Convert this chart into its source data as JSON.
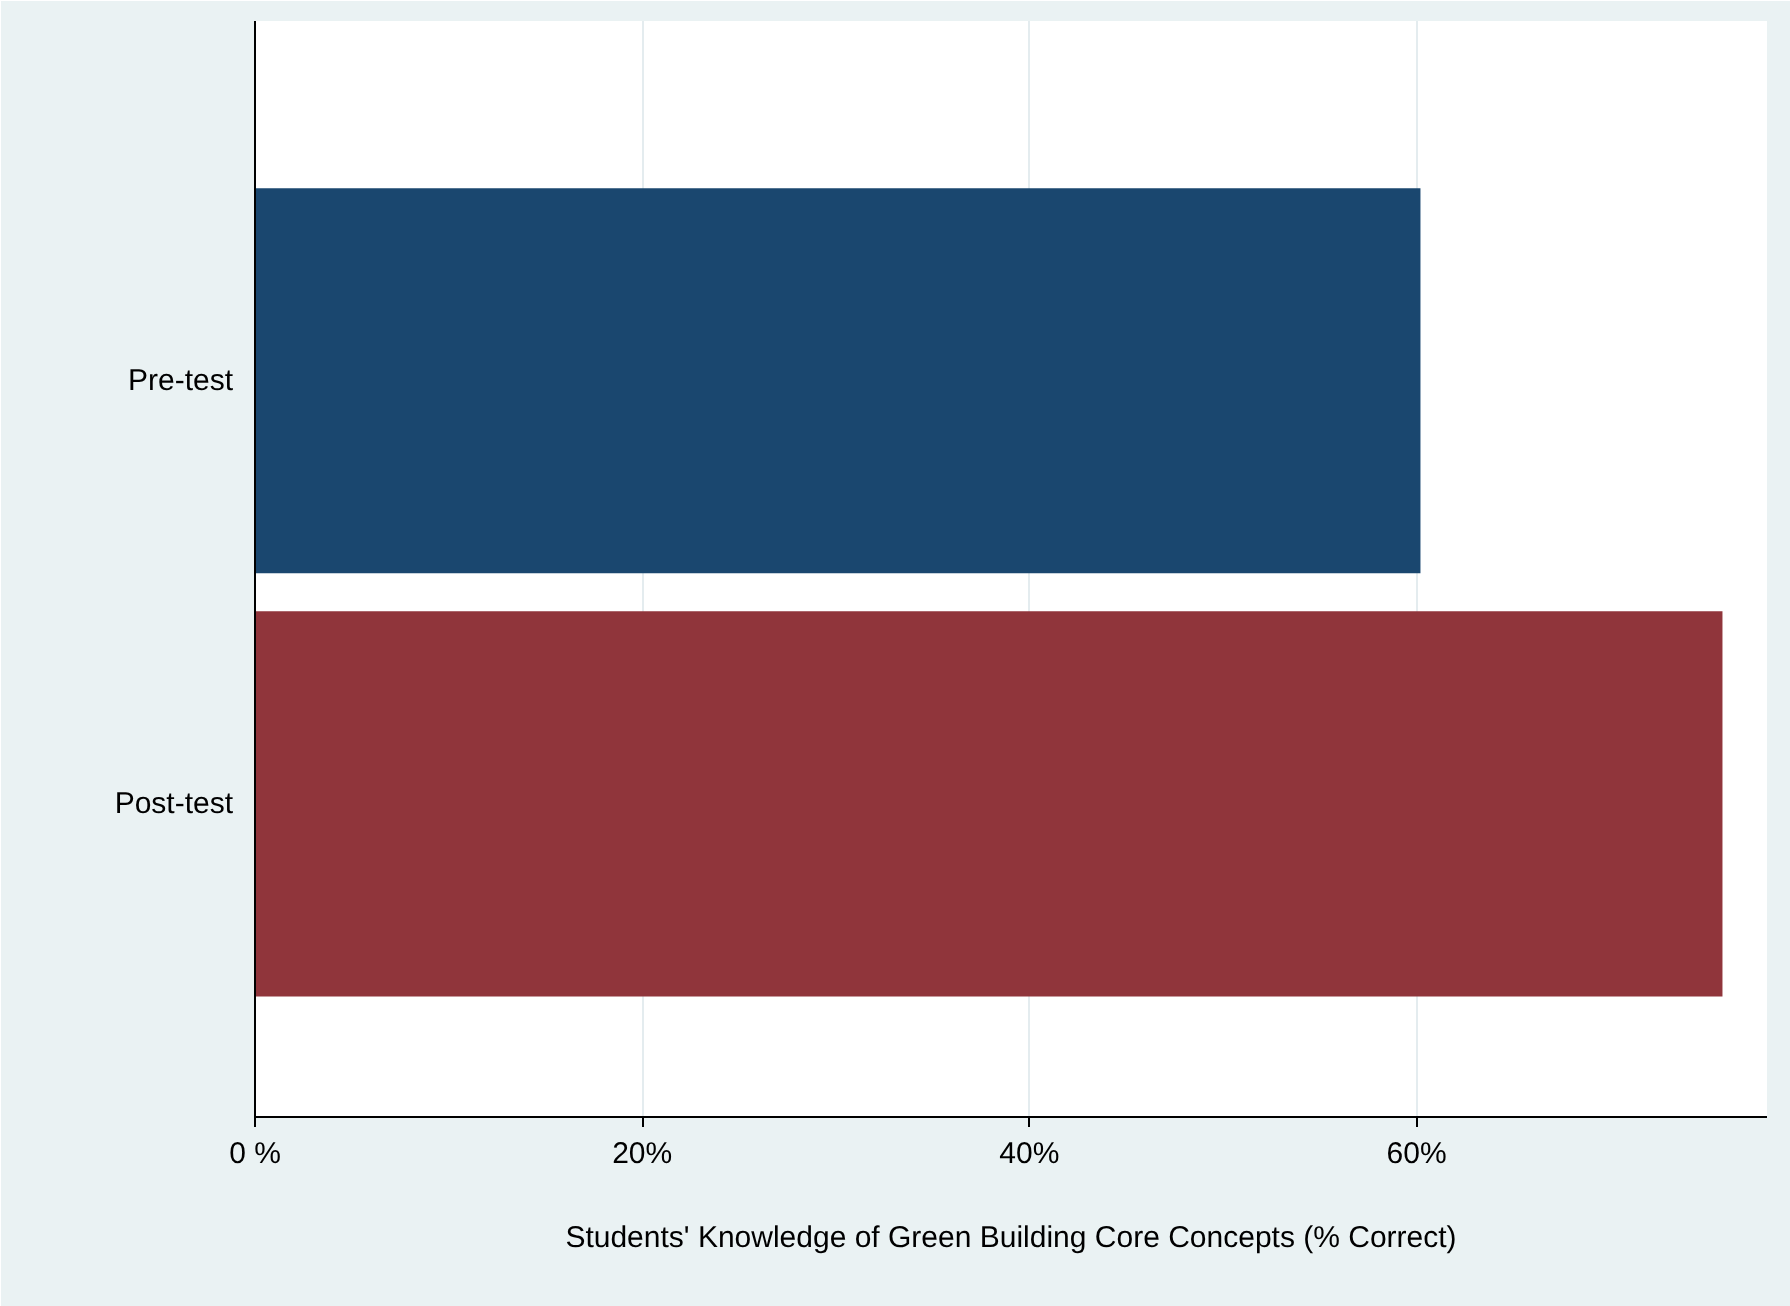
{
  "chart_data": {
    "type": "bar",
    "orientation": "horizontal",
    "xlabel": "Students' Knowledge of Green Building Core Concepts (% Correct)",
    "categories": [
      "Pre-test",
      "Post-test"
    ],
    "values": [
      60.2,
      75.8
    ],
    "colors": [
      "#1a476f",
      "#90353b"
    ],
    "xlim": [
      0,
      78.1
    ],
    "xticks": [
      {
        "value": 0,
        "label": "0 %"
      },
      {
        "value": 20,
        "label": "20%"
      },
      {
        "value": 40,
        "label": "40%"
      },
      {
        "value": 60,
        "label": "60%"
      }
    ],
    "grid": "x"
  }
}
